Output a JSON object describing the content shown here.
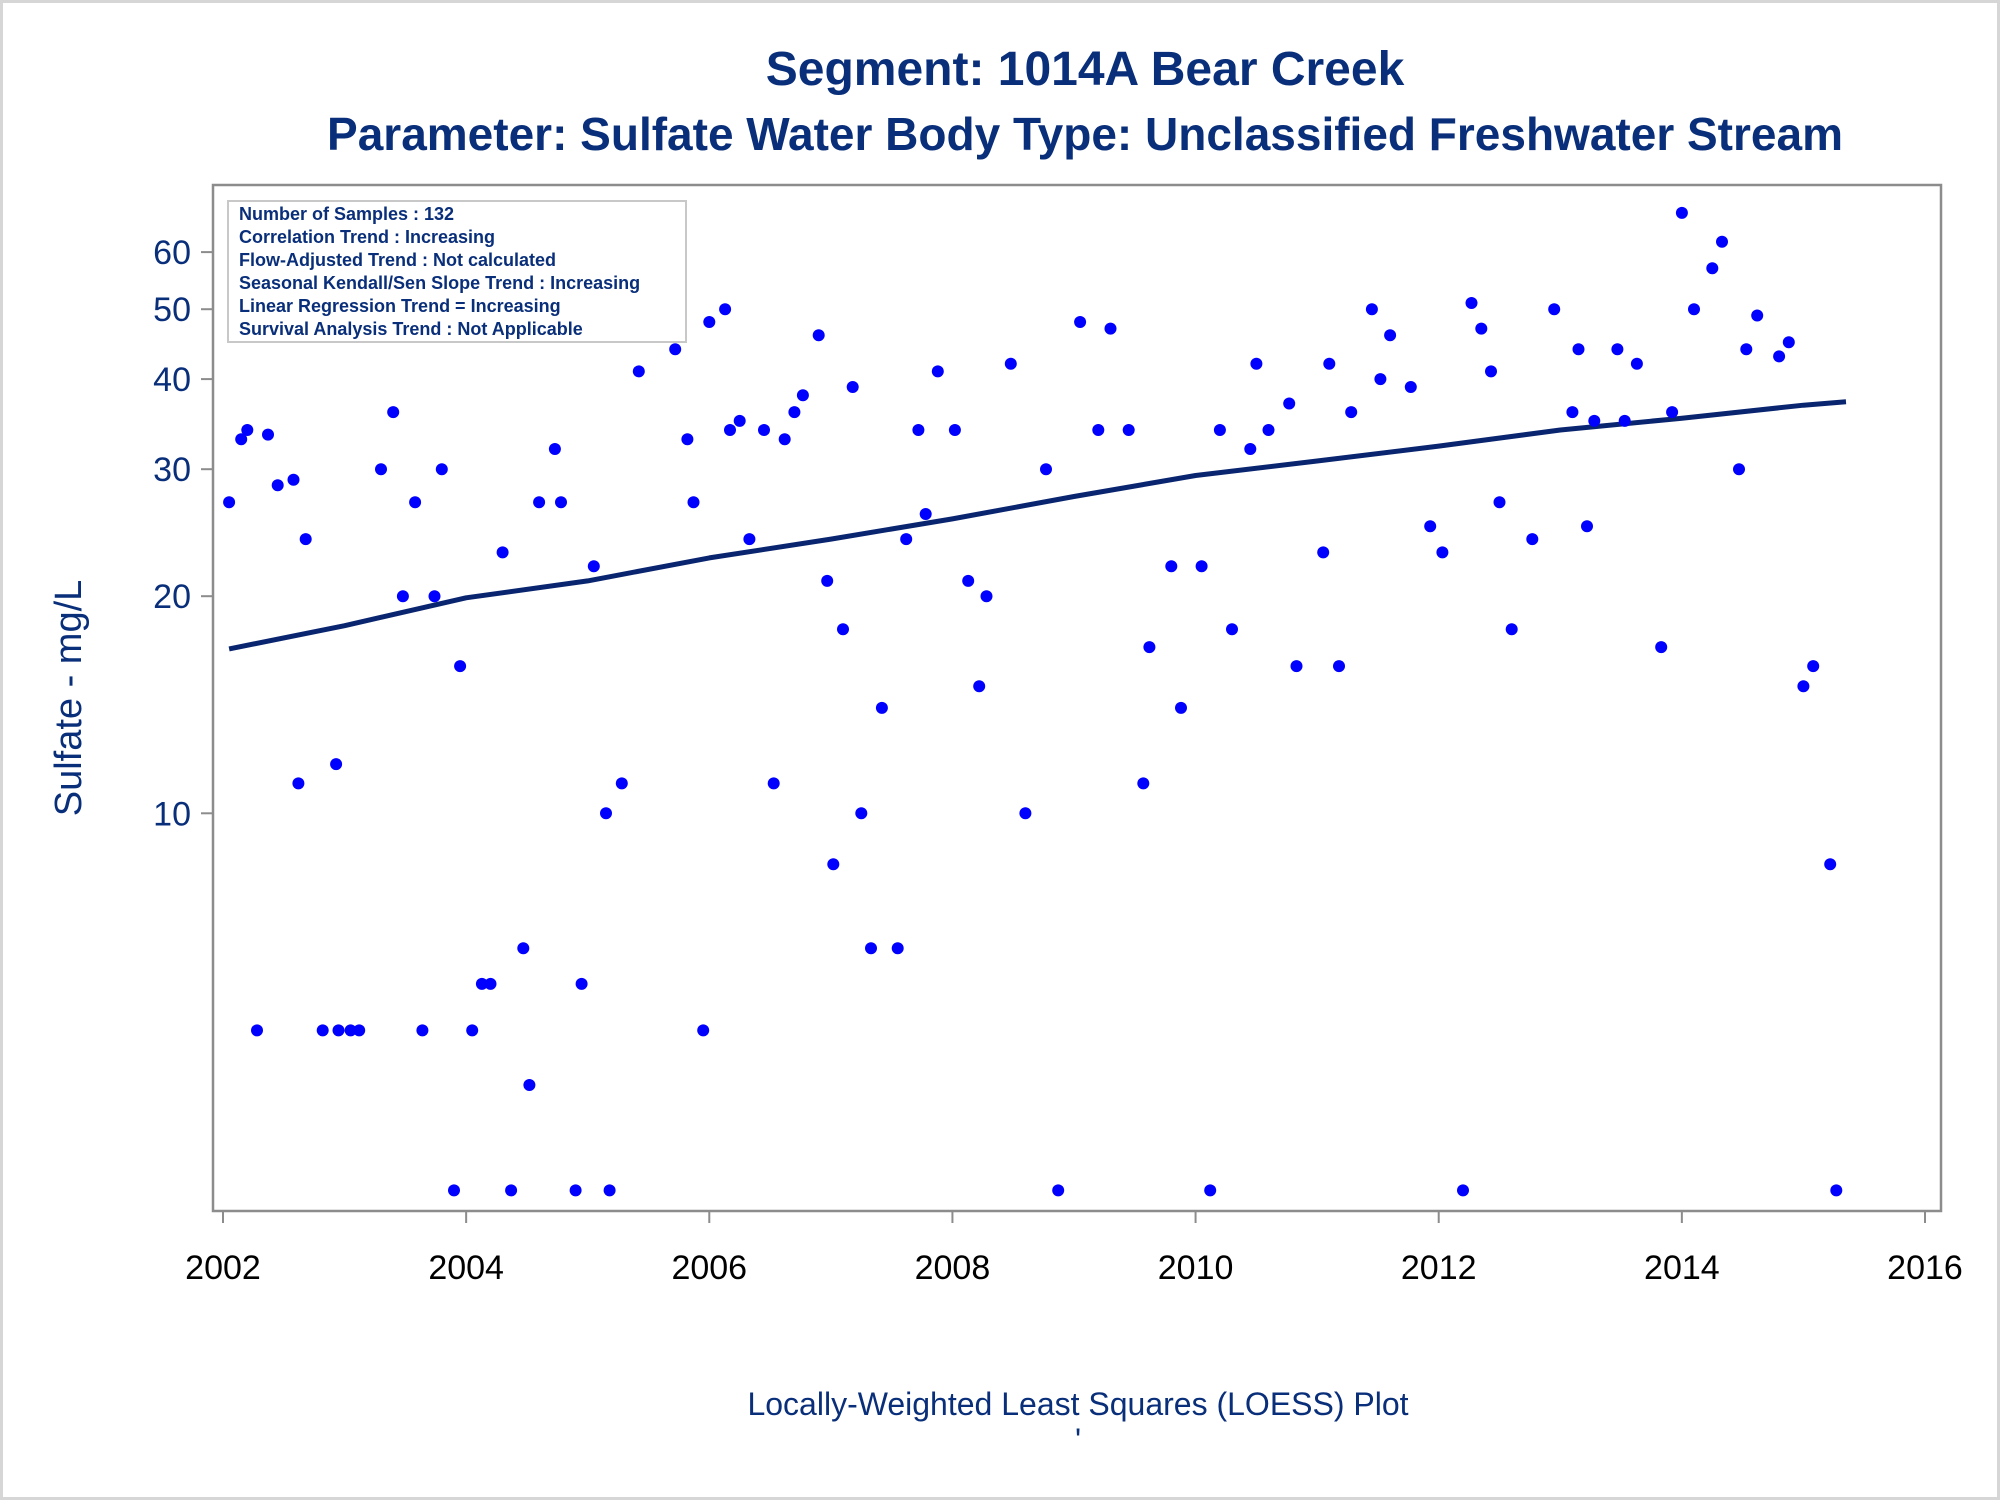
{
  "chart_data": {
    "type": "scatter",
    "title": "Segment: 1014A  Bear Creek",
    "subtitle": "Parameter: Sulfate   Water Body Type: Unclassified Freshwater Stream",
    "xlabel": "",
    "ylabel": "Sulfate - mg/L",
    "footnote": "Locally-Weighted Least Squares (LOESS) Plot",
    "footnote_mark": "'",
    "y_scale": "log",
    "xlim": [
      2002,
      2016
    ],
    "ylim": [
      2.9,
      72
    ],
    "x_ticks": [
      "2002",
      "2004",
      "2006",
      "2008",
      "2010",
      "2012",
      "2014",
      "2016"
    ],
    "y_ticks": [
      "10",
      "20",
      "30",
      "40",
      "50",
      "60"
    ],
    "grid": false,
    "legend_placement": "top-left",
    "legend_lines": [
      "Number of Samples : 132",
      "Correlation Trend : Increasing",
      "Flow-Adjusted Trend : Not calculated",
      "Seasonal Kendall/Sen Slope Trend : Increasing",
      "Linear Regression Trend = Increasing",
      "Survival Analysis Trend : Not Applicable"
    ],
    "colors": {
      "title": "#0a2f7a",
      "points": "#0000ff",
      "trend": "#0a2570",
      "axis": "#8c8c8c",
      "tick_text": "#000000"
    },
    "series": [
      {
        "kind": "points",
        "points": [
          [
            2002.05,
            27
          ],
          [
            2002.15,
            33
          ],
          [
            2002.2,
            34
          ],
          [
            2002.28,
            5
          ],
          [
            2002.37,
            33.5
          ],
          [
            2002.45,
            28.5
          ],
          [
            2002.58,
            29
          ],
          [
            2002.62,
            11
          ],
          [
            2002.68,
            24
          ],
          [
            2002.82,
            5
          ],
          [
            2002.93,
            11.7
          ],
          [
            2002.95,
            5
          ],
          [
            2003.05,
            5
          ],
          [
            2003.12,
            5
          ],
          [
            2003.3,
            30
          ],
          [
            2003.4,
            36
          ],
          [
            2003.48,
            20
          ],
          [
            2003.58,
            27
          ],
          [
            2003.64,
            5
          ],
          [
            2003.74,
            20
          ],
          [
            2003.8,
            30
          ],
          [
            2003.9,
            3
          ],
          [
            2003.95,
            16
          ],
          [
            2004.05,
            5
          ],
          [
            2004.13,
            5.8
          ],
          [
            2004.2,
            5.8
          ],
          [
            2004.3,
            23
          ],
          [
            2004.37,
            3
          ],
          [
            2004.47,
            6.5
          ],
          [
            2004.52,
            4.2
          ],
          [
            2004.6,
            27
          ],
          [
            2004.73,
            32
          ],
          [
            2004.78,
            27
          ],
          [
            2004.9,
            3
          ],
          [
            2004.95,
            5.8
          ],
          [
            2005.05,
            22
          ],
          [
            2005.15,
            10
          ],
          [
            2005.18,
            3
          ],
          [
            2005.28,
            11
          ],
          [
            2005.42,
            41
          ],
          [
            2005.72,
            44
          ],
          [
            2005.82,
            33
          ],
          [
            2005.87,
            27
          ],
          [
            2005.95,
            5
          ],
          [
            2006.0,
            48
          ],
          [
            2006.13,
            50
          ],
          [
            2006.17,
            34
          ],
          [
            2006.25,
            35
          ],
          [
            2006.33,
            24
          ],
          [
            2006.45,
            34
          ],
          [
            2006.53,
            11
          ],
          [
            2006.62,
            33
          ],
          [
            2006.7,
            36
          ],
          [
            2006.77,
            38
          ],
          [
            2006.9,
            46
          ],
          [
            2006.97,
            21
          ],
          [
            2007.02,
            8.5
          ],
          [
            2007.1,
            18
          ],
          [
            2007.18,
            39
          ],
          [
            2007.25,
            10
          ],
          [
            2007.33,
            6.5
          ],
          [
            2007.42,
            14
          ],
          [
            2007.55,
            6.5
          ],
          [
            2007.62,
            24
          ],
          [
            2007.72,
            34
          ],
          [
            2007.78,
            26
          ],
          [
            2007.88,
            41
          ],
          [
            2008.02,
            34
          ],
          [
            2008.13,
            21
          ],
          [
            2008.22,
            15
          ],
          [
            2008.28,
            20
          ],
          [
            2008.48,
            42
          ],
          [
            2008.6,
            10
          ],
          [
            2008.77,
            30
          ],
          [
            2008.87,
            3
          ],
          [
            2009.05,
            48
          ],
          [
            2009.2,
            34
          ],
          [
            2009.3,
            47
          ],
          [
            2009.45,
            34
          ],
          [
            2009.57,
            11
          ],
          [
            2009.62,
            17
          ],
          [
            2009.8,
            22
          ],
          [
            2009.88,
            14
          ],
          [
            2010.05,
            22
          ],
          [
            2010.12,
            3
          ],
          [
            2010.2,
            34
          ],
          [
            2010.3,
            18
          ],
          [
            2010.45,
            32
          ],
          [
            2010.5,
            42
          ],
          [
            2010.6,
            34
          ],
          [
            2010.77,
            37
          ],
          [
            2010.83,
            16
          ],
          [
            2011.05,
            23
          ],
          [
            2011.1,
            42
          ],
          [
            2011.18,
            16
          ],
          [
            2011.28,
            36
          ],
          [
            2011.45,
            50
          ],
          [
            2011.52,
            40
          ],
          [
            2011.6,
            46
          ],
          [
            2011.77,
            39
          ],
          [
            2011.93,
            25
          ],
          [
            2012.03,
            23
          ],
          [
            2012.2,
            3
          ],
          [
            2012.27,
            51
          ],
          [
            2012.35,
            47
          ],
          [
            2012.43,
            41
          ],
          [
            2012.5,
            27
          ],
          [
            2012.6,
            18
          ],
          [
            2012.77,
            24
          ],
          [
            2012.95,
            50
          ],
          [
            2013.1,
            36
          ],
          [
            2013.15,
            44
          ],
          [
            2013.22,
            25
          ],
          [
            2013.28,
            35
          ],
          [
            2013.47,
            44
          ],
          [
            2013.53,
            35
          ],
          [
            2013.63,
            42
          ],
          [
            2013.83,
            17
          ],
          [
            2013.92,
            36
          ],
          [
            2014.0,
            68
          ],
          [
            2014.1,
            50
          ],
          [
            2014.25,
            57
          ],
          [
            2014.33,
            62
          ],
          [
            2014.47,
            30
          ],
          [
            2014.53,
            44
          ],
          [
            2014.62,
            49
          ],
          [
            2014.8,
            43
          ],
          [
            2014.88,
            45
          ],
          [
            2015.0,
            15
          ],
          [
            2015.08,
            16
          ],
          [
            2015.22,
            8.5
          ],
          [
            2015.27,
            3
          ]
        ]
      },
      {
        "kind": "trend_line",
        "points": [
          [
            2002.05,
            16.9
          ],
          [
            2003.0,
            18.2
          ],
          [
            2004.0,
            19.9
          ],
          [
            2005.0,
            21.0
          ],
          [
            2006.0,
            22.6
          ],
          [
            2007.0,
            24.0
          ],
          [
            2008.0,
            25.6
          ],
          [
            2009.0,
            27.5
          ],
          [
            2010.0,
            29.4
          ],
          [
            2011.0,
            30.8
          ],
          [
            2012.0,
            32.3
          ],
          [
            2013.0,
            34.0
          ],
          [
            2014.0,
            35.3
          ],
          [
            2015.0,
            36.8
          ],
          [
            2015.35,
            37.2
          ]
        ]
      }
    ]
  }
}
